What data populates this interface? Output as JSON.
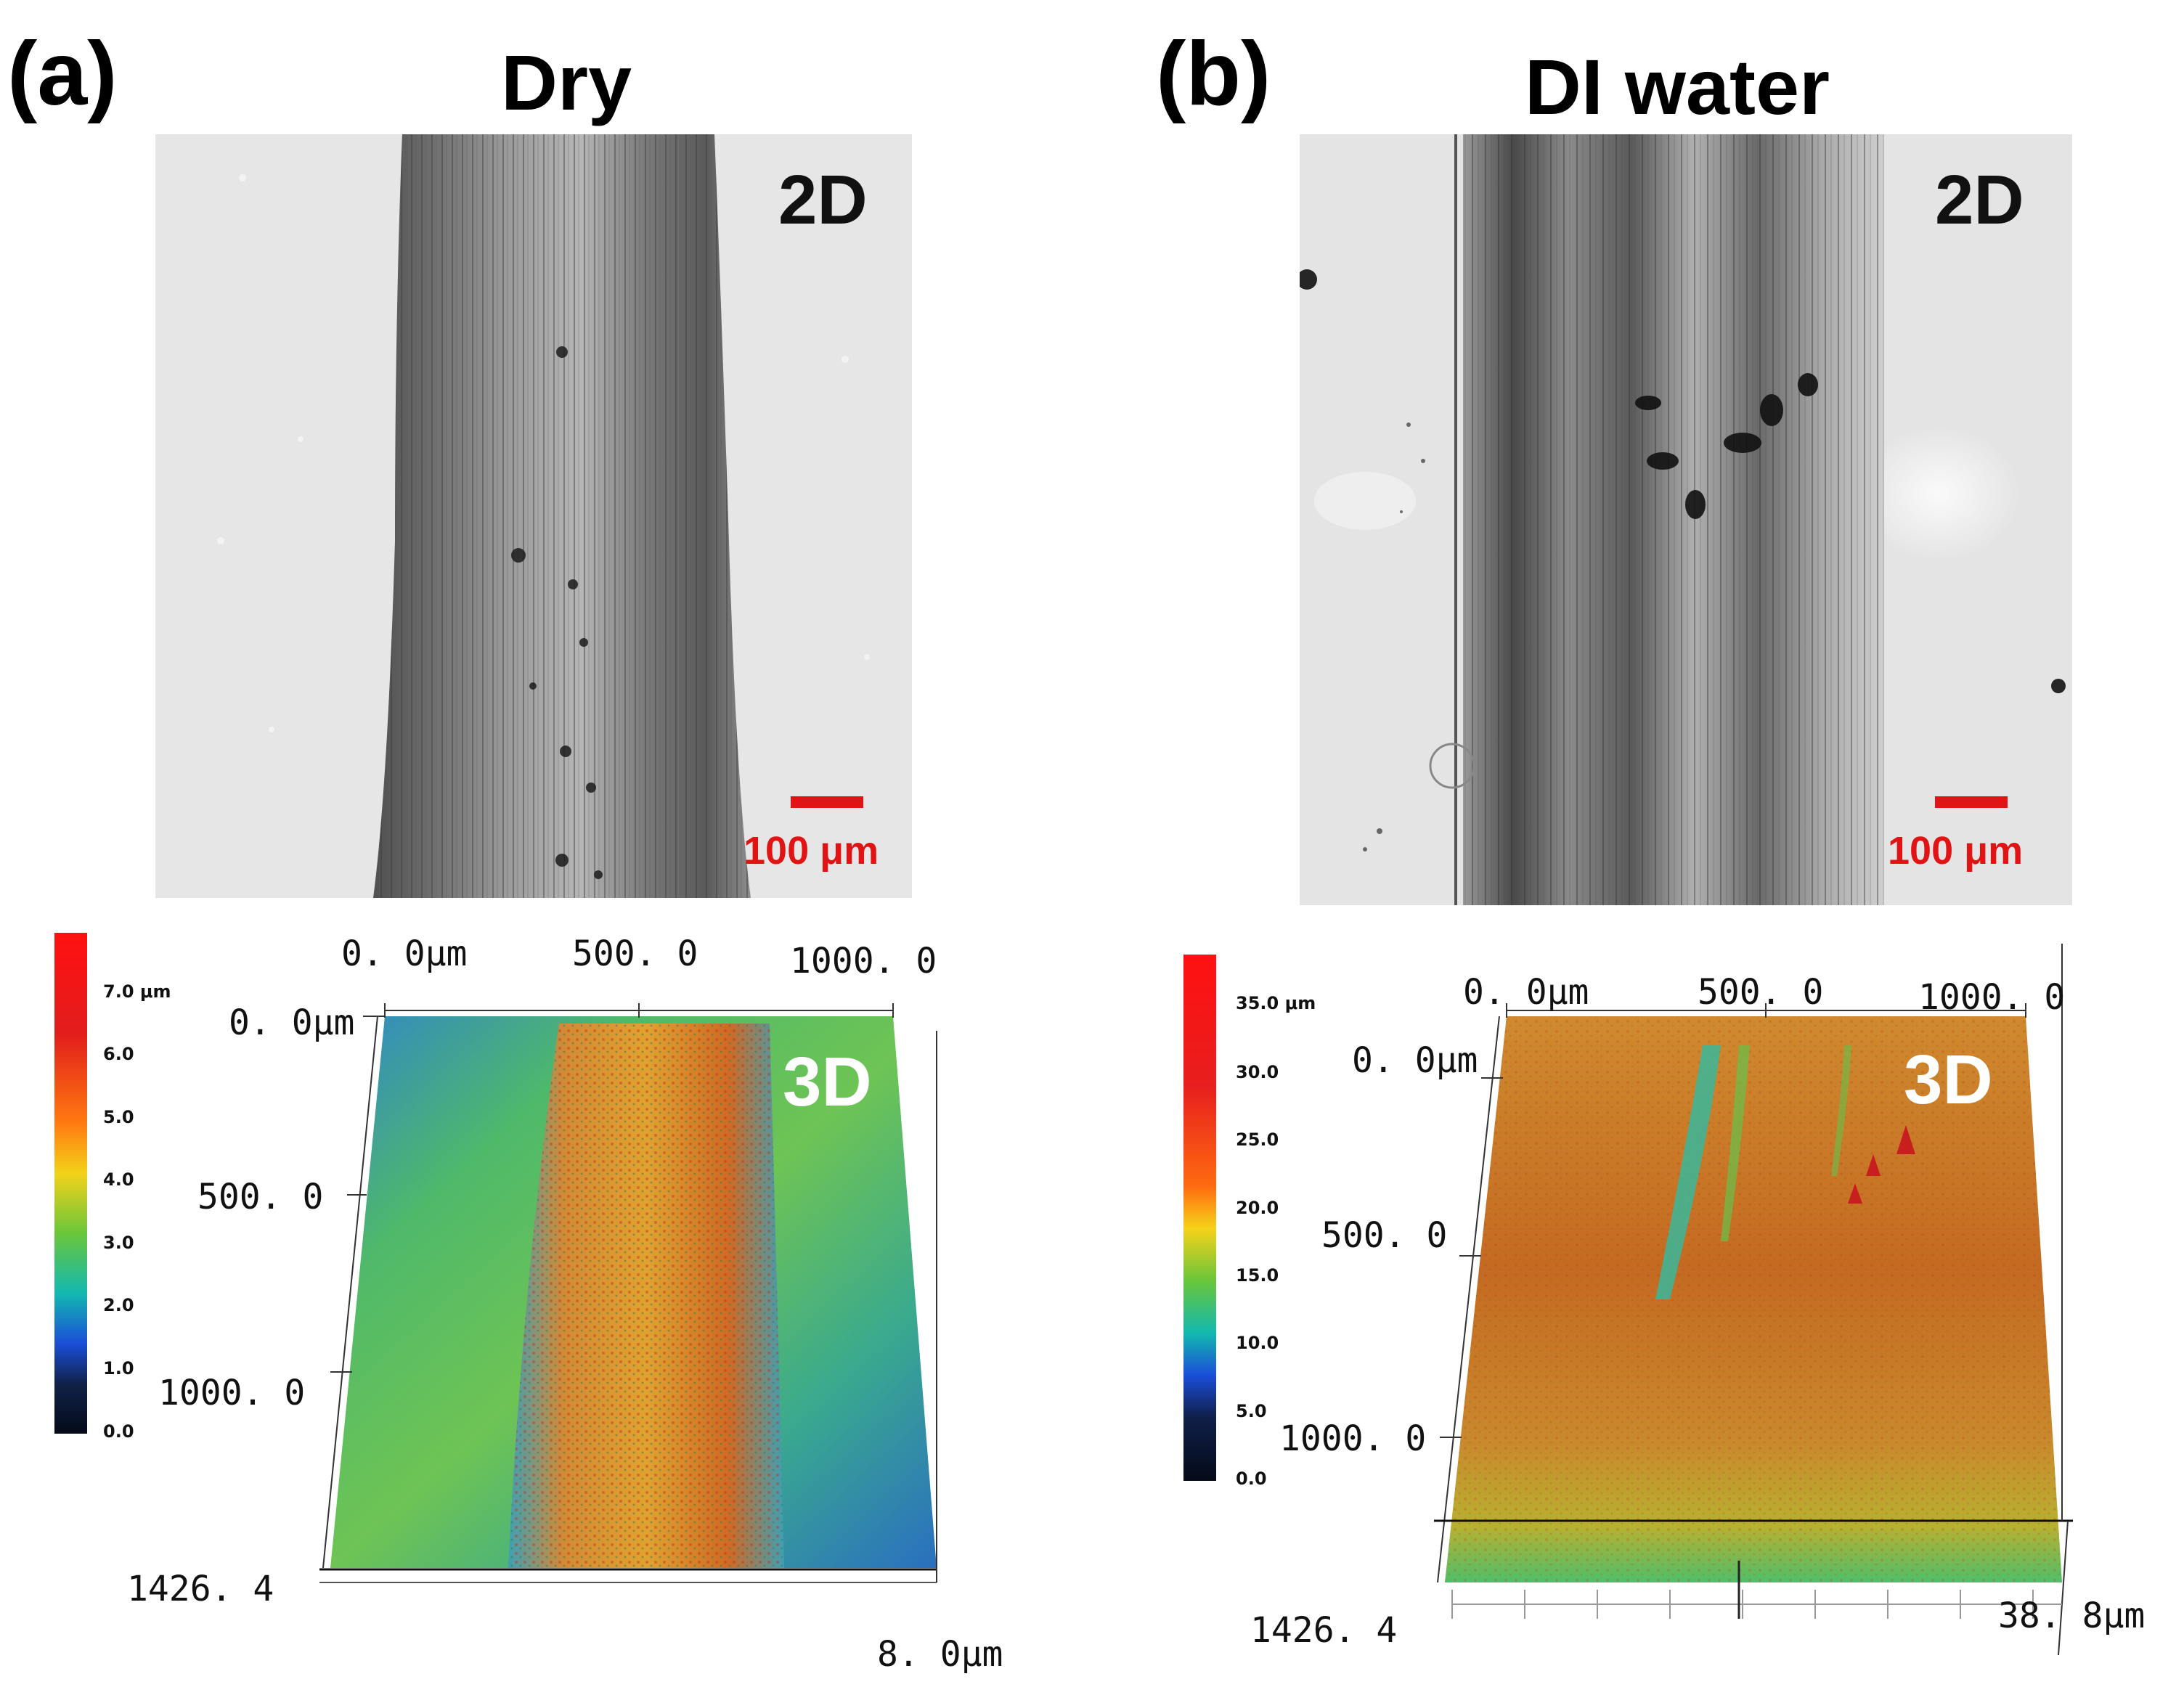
{
  "panel_a": {
    "letter": "(a)",
    "title": "Dry",
    "badge_2d": "2D",
    "badge_3d": "3D",
    "scale_bar_label": "100 μm",
    "colorbar_labels": [
      "7.0 μm",
      "6.0",
      "5.0",
      "4.0",
      "3.0",
      "2.0",
      "1.0",
      "0.0"
    ],
    "x_axis_labels": [
      "0. 0μm",
      "500. 0",
      "1000. 0"
    ],
    "y_axis_labels": [
      "0. 0μm",
      "500. 0",
      "1000. 0",
      "1426. 4"
    ],
    "z_max_label": "8. 0μm"
  },
  "panel_b": {
    "letter": "(b)",
    "title": "DI water",
    "badge_2d": "2D",
    "badge_3d": "3D",
    "scale_bar_label": "100 μm",
    "colorbar_labels": [
      "35.0 μm",
      "30.0",
      "25.0",
      "20.0",
      "15.0",
      "10.0",
      "5.0",
      "0.0"
    ],
    "x_axis_labels": [
      "0. 0μm",
      "500. 0",
      "1000. 0"
    ],
    "y_axis_labels": [
      "0. 0μm",
      "500. 0",
      "1000. 0",
      "1426. 4"
    ],
    "z_max_label": "38. 8μm"
  },
  "colors": {
    "scale_bar": "#e01414",
    "dry_surface": "#3fae7a",
    "dry_track": "#d9802a",
    "water_surface": "#c9782c"
  }
}
